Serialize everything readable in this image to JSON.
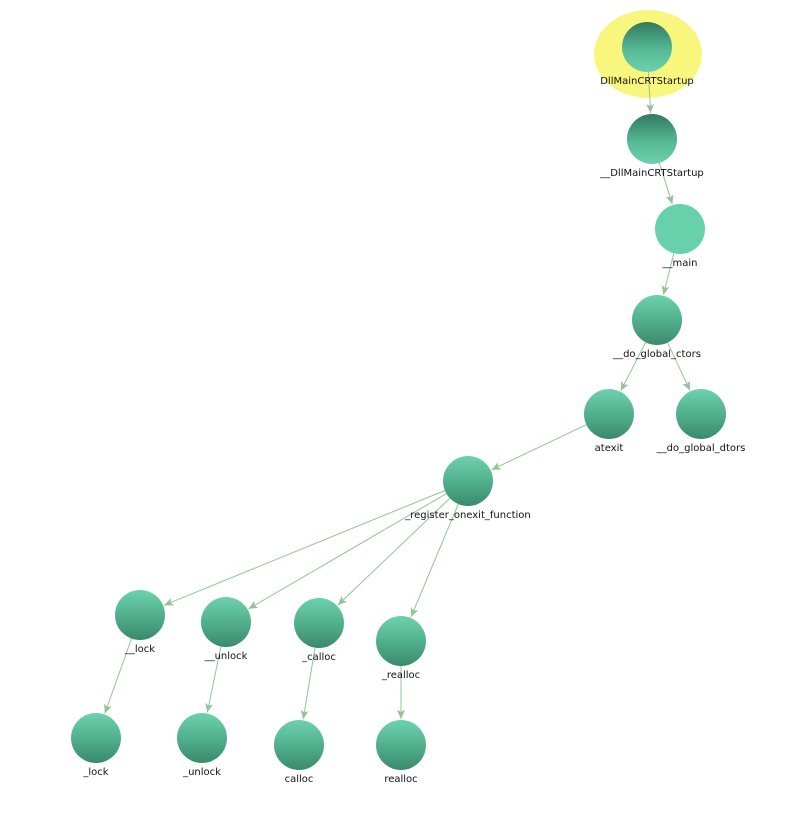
{
  "colors": {
    "edge": "#94c496",
    "node_light": "#6cd2ad",
    "node_dark": "#3a8a6c",
    "highlight": "#f8f67d"
  },
  "graph": {
    "type": "call-graph",
    "root": "DllMainCRTStartup",
    "nodes": [
      {
        "id": "DllMainCRTStartup",
        "label": "DllMainCRTStartup",
        "shading": "dark-top",
        "highlighted": true
      },
      {
        "id": "__DllMainCRTStartup",
        "label": "__DllMainCRTStartup",
        "shading": "dark-top"
      },
      {
        "id": "__main",
        "label": "__main",
        "shading": "flat"
      },
      {
        "id": "__do_global_ctors",
        "label": "__do_global_ctors",
        "shading": "light-top"
      },
      {
        "id": "atexit",
        "label": "atexit",
        "shading": "light-top"
      },
      {
        "id": "__do_global_dtors",
        "label": "__do_global_dtors",
        "shading": "light-top"
      },
      {
        "id": "_register_onexit_function",
        "label": "_register_onexit_function",
        "shading": "light-top"
      },
      {
        "id": "__lock",
        "label": "__lock",
        "shading": "light-top"
      },
      {
        "id": "__unlock",
        "label": "__unlock",
        "shading": "light-top"
      },
      {
        "id": "_calloc",
        "label": "_calloc",
        "shading": "light-top"
      },
      {
        "id": "_realloc",
        "label": "_realloc",
        "shading": "light-top"
      },
      {
        "id": "_lock",
        "label": "_lock",
        "shading": "light-top"
      },
      {
        "id": "_unlock",
        "label": "_unlock",
        "shading": "light-top"
      },
      {
        "id": "calloc",
        "label": "calloc",
        "shading": "light-top"
      },
      {
        "id": "realloc",
        "label": "realloc",
        "shading": "light-top"
      }
    ],
    "edges": [
      {
        "from": "DllMainCRTStartup",
        "to": "__DllMainCRTStartup"
      },
      {
        "from": "__DllMainCRTStartup",
        "to": "__main"
      },
      {
        "from": "__main",
        "to": "__do_global_ctors"
      },
      {
        "from": "__do_global_ctors",
        "to": "atexit"
      },
      {
        "from": "__do_global_ctors",
        "to": "__do_global_dtors"
      },
      {
        "from": "atexit",
        "to": "_register_onexit_function"
      },
      {
        "from": "_register_onexit_function",
        "to": "__lock"
      },
      {
        "from": "_register_onexit_function",
        "to": "__unlock"
      },
      {
        "from": "_register_onexit_function",
        "to": "_calloc"
      },
      {
        "from": "_register_onexit_function",
        "to": "_realloc"
      },
      {
        "from": "__lock",
        "to": "_lock"
      },
      {
        "from": "__unlock",
        "to": "_unlock"
      },
      {
        "from": "_calloc",
        "to": "calloc"
      },
      {
        "from": "_realloc",
        "to": "realloc"
      }
    ]
  }
}
